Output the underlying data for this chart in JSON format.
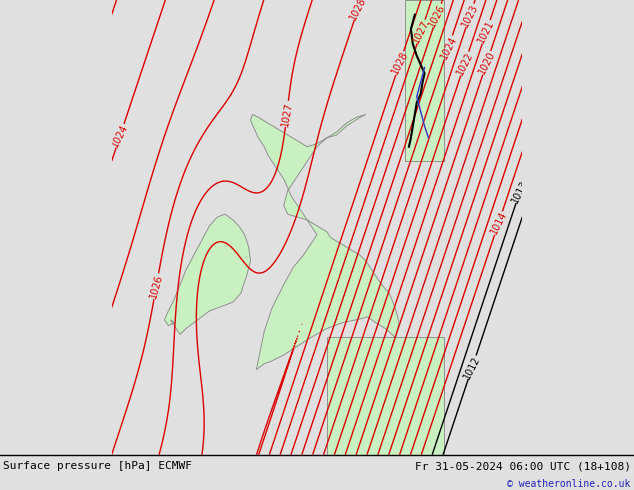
{
  "title_left": "Surface pressure [hPa] ECMWF",
  "title_right": "Fr 31-05-2024 06:00 UTC (18+108)",
  "copyright": "© weatheronline.co.uk",
  "bg_color": "#e0e0e0",
  "land_color": "#c8f0c0",
  "coast_color": "#909090",
  "contour_color": "#dd0000",
  "black_contour_color": "#000000",
  "blue_line_color": "#3333cc",
  "contour_lw": 1.0,
  "label_fontsize": 7,
  "footer_fontsize": 8,
  "figsize": [
    6.34,
    4.9
  ],
  "dpi": 100
}
